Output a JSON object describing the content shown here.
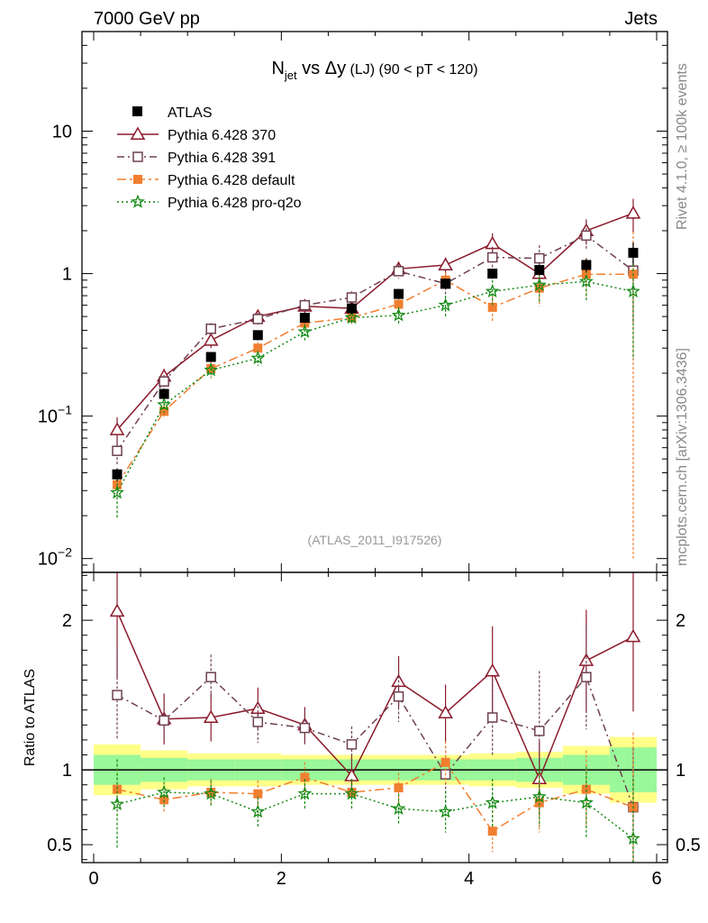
{
  "header": {
    "left": "7000 GeV pp",
    "right": "Jets"
  },
  "side_labels": {
    "rivet": "Rivet 4.1.0, ≥ 100k events",
    "mcplots": "mcplots.cern.ch [arXiv:1306.3436]"
  },
  "chart_data": {
    "type": "scatter",
    "title": {
      "main": "N",
      "sub": "jet",
      "mid": " vs Δy",
      "tag": " (LJ)",
      "range": " (90 < pT < 120)"
    },
    "analysis_label": "(ATLAS_2011_I917526)",
    "ylabel_ratio": "Ratio to ATLAS",
    "xlim": [
      -0.1,
      6.1
    ],
    "ylim_main": [
      0.008,
      50
    ],
    "ylim_ratio": [
      0.38,
      2.32
    ],
    "x_ticks": [
      0,
      2,
      4,
      6
    ],
    "x_tick_labels": [
      "0",
      "2",
      "4",
      "6"
    ],
    "y_ticks_main": [
      {
        "value": 0.01,
        "base": "10",
        "exp": "−2"
      },
      {
        "value": 0.1,
        "base": "10",
        "exp": "−1"
      },
      {
        "value": 1,
        "base": "1",
        "exp": ""
      },
      {
        "value": 10,
        "base": "10",
        "exp": ""
      }
    ],
    "y_ticks_ratio": [
      {
        "value": 0.5,
        "label": "0.5"
      },
      {
        "value": 1,
        "label": "1"
      },
      {
        "value": 2,
        "label": "2"
      }
    ],
    "x": [
      0.25,
      0.75,
      1.25,
      1.75,
      2.25,
      2.75,
      3.25,
      3.75,
      4.25,
      4.75,
      5.25,
      5.75
    ],
    "data": {
      "name": "ATLAS",
      "values": [
        0.039,
        0.143,
        0.26,
        0.37,
        0.49,
        0.57,
        0.72,
        0.85,
        1.0,
        1.06,
        1.15,
        1.4
      ],
      "errors": [
        0.004,
        0.01,
        0.02,
        0.03,
        0.04,
        0.05,
        0.06,
        0.07,
        0.08,
        0.09,
        0.12,
        0.25
      ],
      "band_inner": [
        0.1,
        0.08,
        0.07,
        0.07,
        0.07,
        0.07,
        0.07,
        0.07,
        0.07,
        0.08,
        0.1,
        0.15
      ],
      "band_outer": [
        0.17,
        0.13,
        0.11,
        0.11,
        0.1,
        0.1,
        0.1,
        0.1,
        0.11,
        0.12,
        0.16,
        0.22
      ]
    },
    "series": [
      {
        "name": "Pythia 6.428 370",
        "color": "#8b1a2b",
        "dash": "",
        "marker": "triangle",
        "values": [
          0.08,
          0.19,
          0.34,
          0.5,
          0.59,
          0.57,
          1.08,
          1.15,
          1.62,
          1.0,
          2.0,
          2.65
        ],
        "errors": [
          0.018,
          0.025,
          0.04,
          0.05,
          0.06,
          0.07,
          0.12,
          0.15,
          0.3,
          0.25,
          0.4,
          0.7
        ],
        "ratio": [
          2.06,
          1.34,
          1.35,
          1.41,
          1.3,
          0.96,
          1.59,
          1.38,
          1.66,
          0.94,
          1.73,
          1.89
        ],
        "ratio_err": [
          0.45,
          0.17,
          0.16,
          0.14,
          0.12,
          0.13,
          0.17,
          0.19,
          0.3,
          0.25,
          0.34,
          0.5
        ]
      },
      {
        "name": "Pythia 6.428 391",
        "color": "#6e4050",
        "dash": "8,4,2,4",
        "marker": "square-open",
        "values": [
          0.057,
          0.175,
          0.41,
          0.48,
          0.6,
          0.68,
          1.04,
          0.85,
          1.3,
          1.28,
          1.85,
          1.05
        ],
        "errors": [
          0.012,
          0.02,
          0.04,
          0.05,
          0.06,
          0.07,
          0.12,
          0.15,
          0.25,
          0.3,
          0.4,
          0.6
        ],
        "ratio": [
          1.5,
          1.33,
          1.62,
          1.32,
          1.28,
          1.17,
          1.49,
          0.97,
          1.35,
          1.26,
          1.62,
          0.75
        ],
        "ratio_err": [
          0.3,
          0.14,
          0.15,
          0.14,
          0.12,
          0.12,
          0.17,
          0.19,
          0.25,
          0.4,
          0.35,
          0.4
        ]
      },
      {
        "name": "Pythia 6.428 default",
        "color": "#f07f30",
        "dash": "10,4,3,4",
        "marker": "square",
        "values": [
          0.033,
          0.108,
          0.215,
          0.3,
          0.45,
          0.49,
          0.61,
          0.9,
          0.58,
          0.79,
          0.99,
          0.99
        ],
        "errors": [
          0.006,
          0.012,
          0.025,
          0.03,
          0.05,
          0.05,
          0.08,
          0.12,
          0.12,
          0.2,
          0.3,
          0.98
        ],
        "ratio": [
          0.87,
          0.8,
          0.85,
          0.84,
          0.95,
          0.85,
          0.88,
          1.05,
          0.59,
          0.78,
          0.87,
          0.75
        ],
        "ratio_err": [
          0.2,
          0.09,
          0.09,
          0.09,
          0.1,
          0.09,
          0.1,
          0.14,
          0.14,
          0.2,
          0.26,
          0.5
        ]
      },
      {
        "name": "Pythia 6.428 pro-q2o",
        "color": "#138a13",
        "dash": "2,3",
        "marker": "star",
        "values": [
          0.029,
          0.12,
          0.21,
          0.255,
          0.39,
          0.49,
          0.51,
          0.6,
          0.75,
          0.83,
          0.88,
          0.75
        ],
        "errors": [
          0.01,
          0.015,
          0.025,
          0.03,
          0.05,
          0.05,
          0.07,
          0.1,
          0.15,
          0.2,
          0.25,
          0.5
        ],
        "ratio": [
          0.77,
          0.85,
          0.84,
          0.72,
          0.84,
          0.84,
          0.74,
          0.72,
          0.78,
          0.82,
          0.78,
          0.54
        ],
        "ratio_err": [
          0.3,
          0.1,
          0.09,
          0.1,
          0.1,
          0.1,
          0.1,
          0.14,
          0.16,
          0.2,
          0.24,
          0.4
        ]
      }
    ]
  }
}
